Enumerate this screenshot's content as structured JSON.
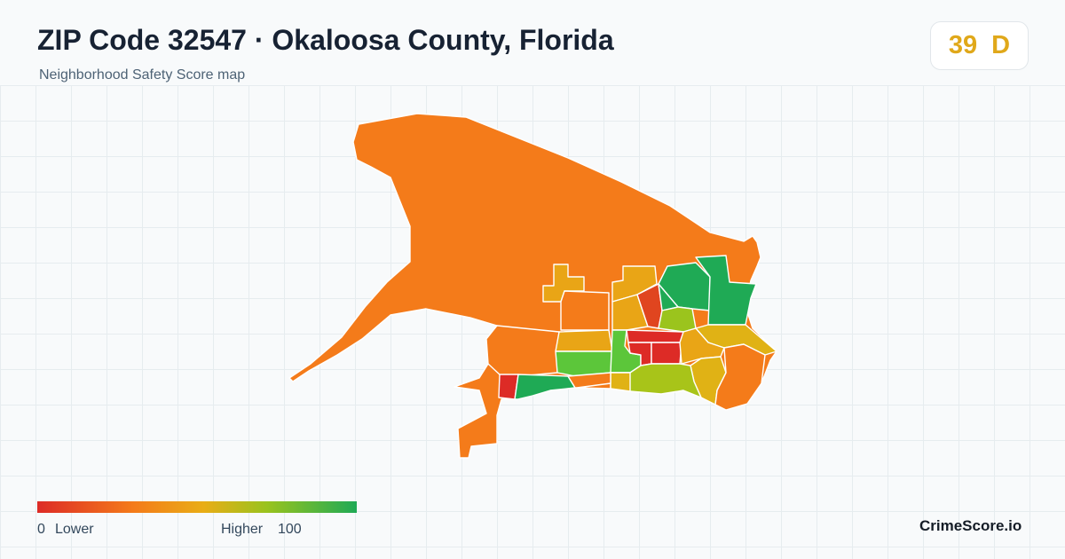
{
  "header": {
    "title": "ZIP Code 32547 · Okaloosa County, Florida",
    "subtitle": "Neighborhood Safety Score map"
  },
  "score": {
    "value": "39",
    "grade": "D",
    "color": "#e0a81a"
  },
  "legend": {
    "min_label": "0",
    "low_label": "Lower",
    "high_label": "Higher",
    "max_label": "100",
    "gradient_colors": [
      "#dd2b26",
      "#f47b1a",
      "#e9ad16",
      "#99c31e",
      "#1faa55"
    ]
  },
  "brand": "CrimeScore.io",
  "map": {
    "type": "choropleth",
    "colors": {
      "lowest": "#dd2b26",
      "low": "#f47b1a",
      "medium": "#e9a516",
      "medium_high": "#9bc41d",
      "high": "#5cc63a",
      "highest": "#1faa55"
    }
  }
}
